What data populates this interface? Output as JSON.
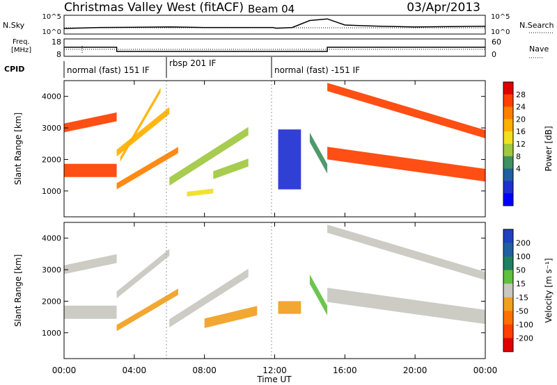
{
  "header": {
    "station": "Christmas Valley West (fitACF)",
    "beam": "Beam 04",
    "date": "03/Apr/2013"
  },
  "noise_panel": {
    "left_label": "N.Sky",
    "right_label": "N.Search",
    "left_ticks": [
      "10^5",
      "10^0"
    ],
    "right_ticks": [
      "10^5",
      "10^0"
    ]
  },
  "freq_panel": {
    "left_label_line1": "Freq.",
    "left_label_line2": "[MHz]",
    "right_label": "Nave",
    "left_ticks": [
      "18",
      "8"
    ],
    "right_ticks": [
      "60",
      "0"
    ]
  },
  "cpid": {
    "label": "CPID",
    "segments": [
      {
        "name": "normal (fast) 151 IF",
        "start_hour": 0,
        "end_hour": 6.0
      },
      {
        "name": "rbsp 201 IF",
        "start_hour": 6.0,
        "end_hour": 12.0
      },
      {
        "name": "normal (fast) -151 IF",
        "start_hour": 12.0,
        "end_hour": 24.0
      }
    ]
  },
  "power_panel": {
    "ylabel": "Slant Range [km]",
    "yticks": [
      "4000",
      "3000",
      "2000",
      "1000"
    ],
    "colorbar_label": "Power [dB]",
    "colorbar_ticks": [
      "28",
      "24",
      "20",
      "16",
      "12",
      "8",
      "4"
    ],
    "colorbar_colors": [
      "#e00000",
      "#ff4000",
      "#ff8000",
      "#ffb000",
      "#f0e020",
      "#a0c840",
      "#409060",
      "#2060a0",
      "#2030d0",
      "#0000ff"
    ]
  },
  "velocity_panel": {
    "ylabel": "Slant Range [km]",
    "yticks": [
      "4000",
      "3000",
      "2000",
      "1000"
    ],
    "colorbar_label": "Velocity [m s⁻¹]",
    "colorbar_ticks": [
      "200",
      "100",
      "50",
      "15",
      "-15",
      "-50",
      "-100",
      "-200"
    ],
    "colorbar_colors": [
      "#2040c0",
      "#2060a0",
      "#208060",
      "#60c040",
      "#c8c8c0",
      "#f0a020",
      "#ff7000",
      "#ff4000",
      "#e00000"
    ]
  },
  "x_axis": {
    "label": "Time UT",
    "ticks": [
      "00:00",
      "04:00",
      "08:00",
      "12:00",
      "16:00",
      "20:00",
      "00:00"
    ]
  },
  "chart_data": {
    "type": "heatmap",
    "x_range_hours": [
      0,
      24
    ],
    "y_range_km": [
      180,
      4500
    ],
    "noise_log10": {
      "hours": [
        0,
        2,
        4,
        6,
        8,
        10,
        11.9,
        12.1,
        13,
        14,
        15,
        16,
        18,
        20,
        22,
        24
      ],
      "sky": [
        1.3,
        1.6,
        1.7,
        1.8,
        1.6,
        1.6,
        1.6,
        1.4,
        1.6,
        3.8,
        4.3,
        2.4,
        2.0,
        1.8,
        1.9,
        2.0
      ]
    },
    "frequency_mhz": {
      "hours": [
        0,
        3.0,
        3.0,
        12.0,
        12.0,
        15.0,
        15.0,
        24
      ],
      "values": [
        13.5,
        13.5,
        10.5,
        10.5,
        10.5,
        10.5,
        13.5,
        13.5
      ]
    },
    "power_echo_bands": [
      {
        "start_hour": 0.0,
        "end_hour": 3.0,
        "range_km_start": 1650,
        "range_km_end": 1650,
        "width_km": 420,
        "power_db": 27
      },
      {
        "start_hour": 0.0,
        "end_hour": 3.0,
        "range_km_start": 3000,
        "range_km_end": 3350,
        "width_km": 280,
        "power_db": 26
      },
      {
        "start_hour": 3.0,
        "end_hour": 6.5,
        "range_km_start": 1150,
        "range_km_end": 2300,
        "width_km": 200,
        "power_db": 24
      },
      {
        "start_hour": 3.0,
        "end_hour": 6.0,
        "range_km_start": 2200,
        "range_km_end": 3550,
        "width_km": 220,
        "power_db": 22
      },
      {
        "start_hour": 3.2,
        "end_hour": 5.5,
        "range_km_start": 2000,
        "range_km_end": 4200,
        "width_km": 150,
        "power_db": 20
      },
      {
        "start_hour": 6.0,
        "end_hour": 10.5,
        "range_km_start": 1300,
        "range_km_end": 2900,
        "width_km": 260,
        "power_db": 14
      },
      {
        "start_hour": 8.5,
        "end_hour": 10.5,
        "range_km_start": 1500,
        "range_km_end": 1900,
        "width_km": 250,
        "power_db": 16
      },
      {
        "start_hour": 7.0,
        "end_hour": 8.5,
        "range_km_start": 900,
        "range_km_end": 1000,
        "width_km": 150,
        "power_db": 18
      },
      {
        "start_hour": 12.2,
        "end_hour": 13.5,
        "range_km_start": 2000,
        "range_km_end": 2000,
        "width_km": 1900,
        "power_db": 6
      },
      {
        "start_hour": 14.0,
        "end_hour": 15.0,
        "range_km_start": 2700,
        "range_km_end": 1700,
        "width_km": 300,
        "power_db": 12
      },
      {
        "start_hour": 15.0,
        "end_hour": 24.0,
        "range_km_start": 2200,
        "range_km_end": 1500,
        "width_km": 400,
        "power_db": 27
      },
      {
        "start_hour": 15.0,
        "end_hour": 24.0,
        "range_km_start": 4300,
        "range_km_end": 2800,
        "width_km": 260,
        "power_db": 26
      }
    ],
    "velocity_echo_bands": [
      {
        "start_hour": 0.0,
        "end_hour": 3.0,
        "range_km_start": 1650,
        "range_km_end": 1650,
        "width_km": 420,
        "velocity_ms": 0
      },
      {
        "start_hour": 0.0,
        "end_hour": 3.0,
        "range_km_start": 3000,
        "range_km_end": 3350,
        "width_km": 280,
        "velocity_ms": -10
      },
      {
        "start_hour": 3.0,
        "end_hour": 6.5,
        "range_km_start": 1150,
        "range_km_end": 2300,
        "width_km": 200,
        "velocity_ms": -40
      },
      {
        "start_hour": 3.0,
        "end_hour": 6.0,
        "range_km_start": 2200,
        "range_km_end": 3550,
        "width_km": 220,
        "velocity_ms": -10
      },
      {
        "start_hour": 6.0,
        "end_hour": 10.5,
        "range_km_start": 1300,
        "range_km_end": 2900,
        "width_km": 260,
        "velocity_ms": -10
      },
      {
        "start_hour": 8.0,
        "end_hour": 11.0,
        "range_km_start": 1300,
        "range_km_end": 1700,
        "width_km": 300,
        "velocity_ms": -45
      },
      {
        "start_hour": 12.2,
        "end_hour": 13.5,
        "range_km_start": 1800,
        "range_km_end": 1800,
        "width_km": 400,
        "velocity_ms": -40
      },
      {
        "start_hour": 14.0,
        "end_hour": 15.0,
        "range_km_start": 2700,
        "range_km_end": 1700,
        "width_km": 300,
        "velocity_ms": 30
      },
      {
        "start_hour": 15.0,
        "end_hour": 24.0,
        "range_km_start": 2200,
        "range_km_end": 1500,
        "width_km": 450,
        "velocity_ms": 0
      },
      {
        "start_hour": 15.0,
        "end_hour": 24.0,
        "range_km_start": 4300,
        "range_km_end": 2800,
        "width_km": 260,
        "velocity_ms": 0
      }
    ]
  }
}
